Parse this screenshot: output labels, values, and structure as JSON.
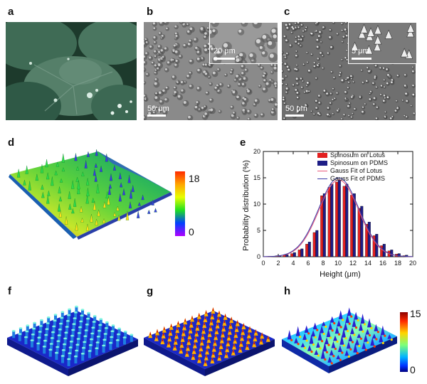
{
  "panels": {
    "a": "a",
    "b": "b",
    "c": "c",
    "d": "d",
    "e": "e",
    "f": "f",
    "g": "g",
    "h": "h"
  },
  "scalebars": {
    "b_main": "50 μm",
    "b_inset": "20 μm",
    "c_main": "50 μm",
    "c_inset": "5 μm"
  },
  "colorbar_d": {
    "max": "18",
    "min": "0"
  },
  "colorbar_h": {
    "max": "15",
    "min": "0"
  },
  "colors": {
    "lotus": "#e32020",
    "pdms": "#1d1d86",
    "fit_lotus": "#e8557a",
    "fit_pdms": "#3a3aa8"
  },
  "chart_data": {
    "type": "bar",
    "xlabel": "Height (μm)",
    "ylabel": "Probability distribution  (%)",
    "xlim": [
      0,
      20
    ],
    "ylim": [
      0,
      20
    ],
    "x_ticks": [
      "0",
      "2",
      "4",
      "6",
      "8",
      "10",
      "12",
      "14",
      "16",
      "18",
      "20"
    ],
    "y_ticks": [
      "0",
      "5",
      "10",
      "15",
      "20"
    ],
    "x": [
      1,
      2,
      3,
      4,
      5,
      6,
      7,
      8,
      9,
      10,
      11,
      12,
      13,
      14,
      15,
      16,
      17,
      18,
      19
    ],
    "series": [
      {
        "name": "Spinosum on Lotus",
        "kind": "bar",
        "values": [
          0.1,
          0.2,
          0.3,
          0.6,
          1.3,
          2.4,
          4.6,
          11.6,
          13.2,
          14.2,
          13.4,
          11.7,
          9.2,
          6.2,
          4.0,
          2.1,
          1.1,
          0.5,
          0.2
        ]
      },
      {
        "name": "Spinosum on PDMS",
        "kind": "bar",
        "values": [
          0.1,
          0.2,
          0.4,
          0.8,
          1.5,
          2.8,
          5.0,
          12.0,
          13.8,
          14.6,
          13.8,
          12.0,
          9.6,
          6.6,
          4.3,
          2.4,
          1.3,
          0.6,
          0.3
        ]
      },
      {
        "name": "Gauss Fit of Lotus",
        "kind": "line",
        "mean": 10.1,
        "sigma": 2.65,
        "peak": 14.6
      },
      {
        "name": "Gauss Fit of PDMS",
        "kind": "line",
        "mean": 10.1,
        "sigma": 2.7,
        "peak": 15.0
      }
    ],
    "legend": "top-right"
  }
}
